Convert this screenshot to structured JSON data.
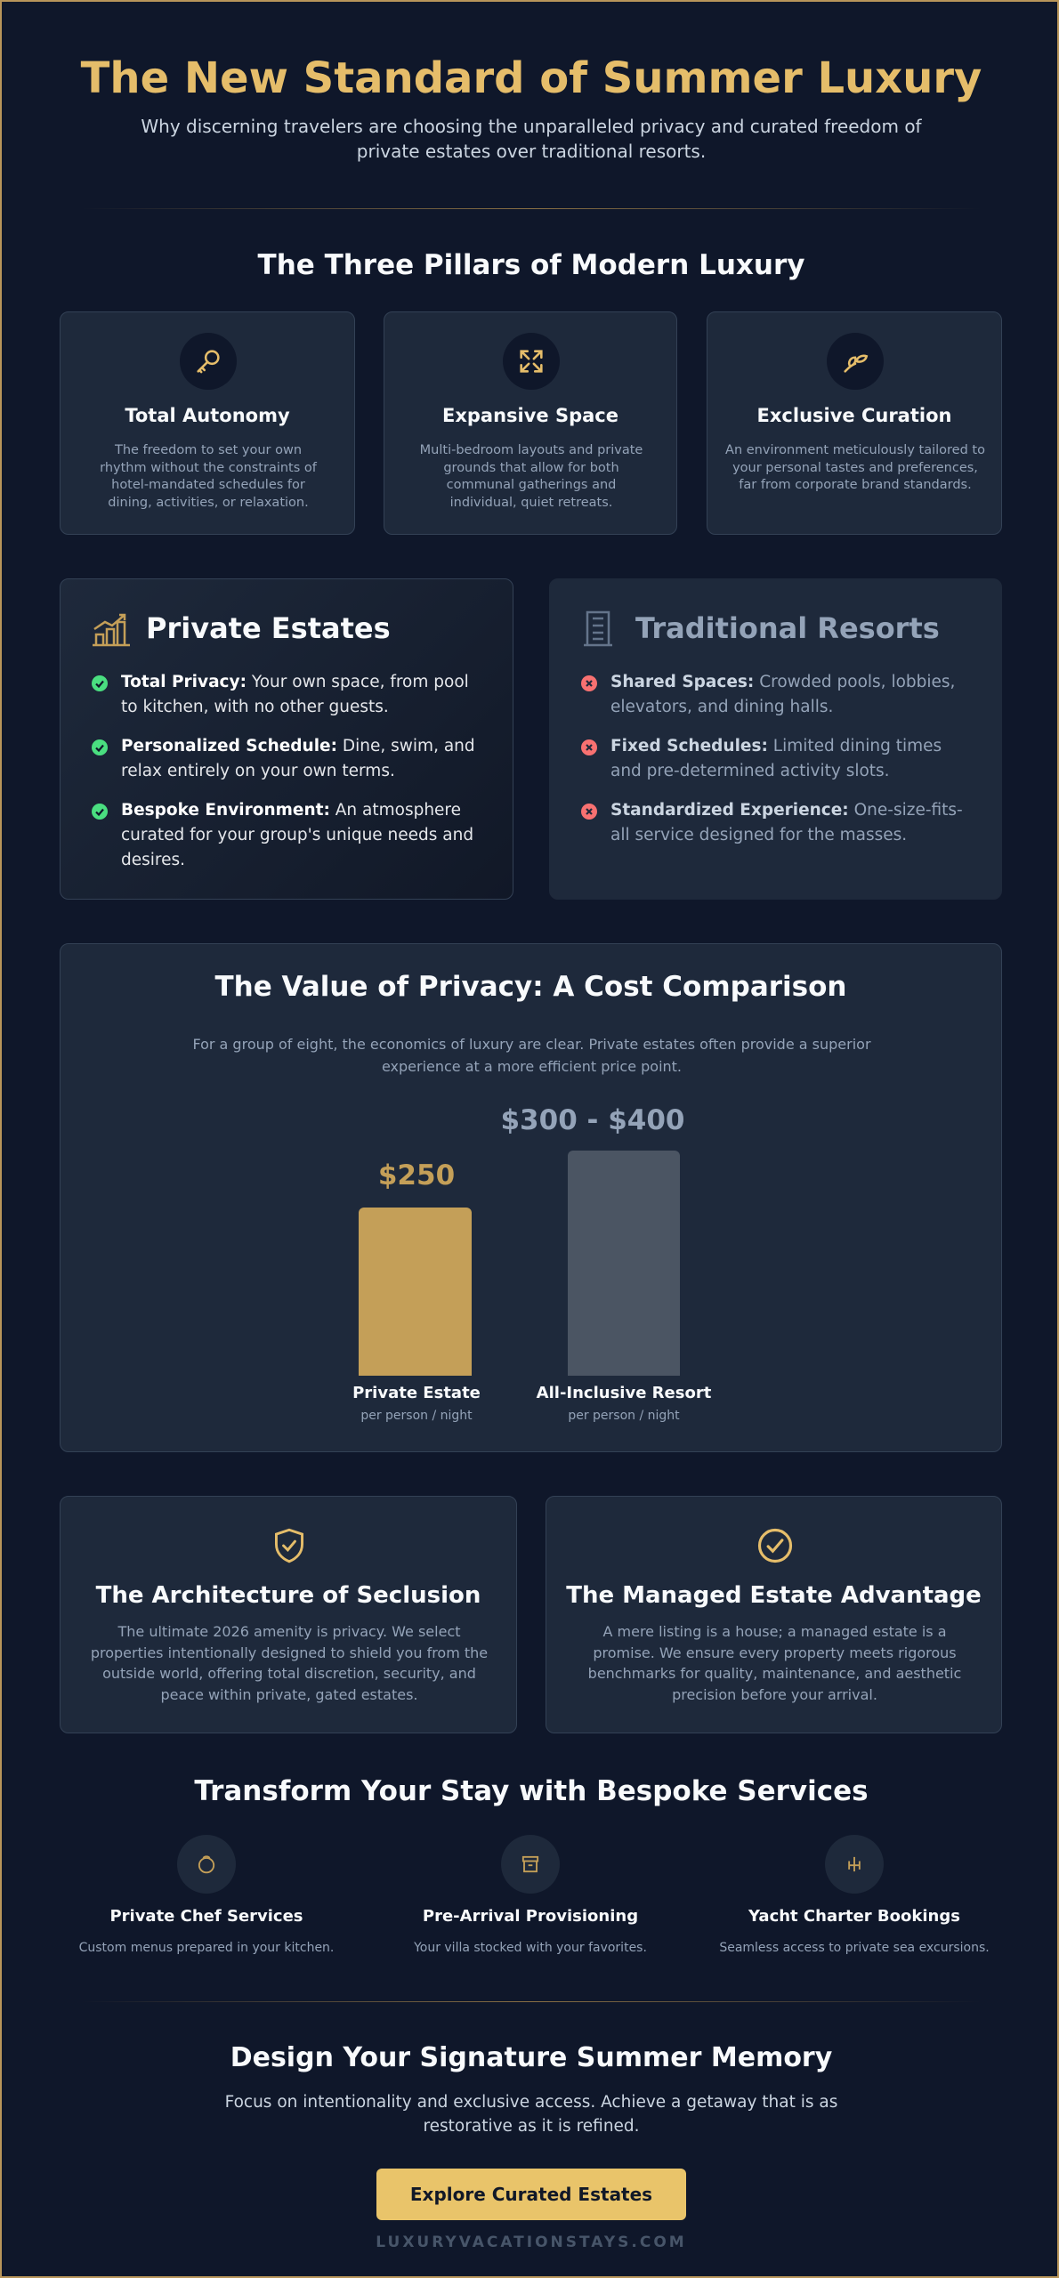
{
  "header": {
    "title": "The New Standard of Summer Luxury",
    "subtitle": "Why discerning travelers are choosing the unparalleled privacy and curated freedom of private estates over traditional resorts."
  },
  "pillars": {
    "heading": "The Three Pillars of Modern Luxury",
    "cards": [
      {
        "title": "Total Autonomy",
        "text": "The freedom to set your own rhythm without the constraints of hotel-mandated schedules for dining, activities, or relaxation."
      },
      {
        "title": "Expansive Space",
        "text": "Multi-bedroom layouts and private grounds that allow for both communal gatherings and individual, quiet retreats."
      },
      {
        "title": "Exclusive Curation",
        "text": "An environment meticulously tailored to your personal tastes and preferences, far from corporate brand standards."
      }
    ]
  },
  "comparison": {
    "private": {
      "title": "Private Estates",
      "items": [
        {
          "label": "Total Privacy:",
          "text": "Your own space, from pool to kitchen, with no other guests."
        },
        {
          "label": "Personalized Schedule:",
          "text": "Dine, swim, and relax entirely on your own terms."
        },
        {
          "label": "Bespoke Environment:",
          "text": "An atmosphere curated for your group's unique needs and desires."
        }
      ]
    },
    "resorts": {
      "title": "Traditional Resorts",
      "items": [
        {
          "label": "Shared Spaces:",
          "text": "Crowded pools, lobbies, elevators, and dining halls."
        },
        {
          "label": "Fixed Schedules:",
          "text": "Limited dining times and pre-determined activity slots."
        },
        {
          "label": "Standardized Experience:",
          "text": "One-size-fits-all service designed for the masses."
        }
      ]
    }
  },
  "cost": {
    "title": "The Value of Privacy: A Cost Comparison",
    "text": "For a group of eight, the economics of luxury are clear. Private estates often provide a superior experience at a more efficient price point.",
    "bars": [
      {
        "price": "$250",
        "label": "Private Estate",
        "unit": "per person / night"
      },
      {
        "price": "$300 - $400",
        "label": "All-Inclusive Resort",
        "unit": "per person / night"
      }
    ]
  },
  "features": [
    {
      "title": "The Architecture of Seclusion",
      "text": "The ultimate 2026 amenity is privacy. We select properties intentionally designed to shield you from the outside world, offering total discretion, security, and peace within private, gated estates."
    },
    {
      "title": "The Managed Estate Advantage",
      "text": "A mere listing is a house; a managed estate is a promise. We ensure every property meets rigorous benchmarks for quality, maintenance, and aesthetic precision before your arrival."
    }
  ],
  "services": {
    "heading": "Transform Your Stay with Bespoke Services",
    "items": [
      {
        "title": "Private Chef Services",
        "text": "Custom menus prepared in your kitchen."
      },
      {
        "title": "Pre-Arrival Provisioning",
        "text": "Your villa stocked with your favorites."
      },
      {
        "title": "Yacht Charter Bookings",
        "text": "Seamless access to private sea excursions."
      }
    ]
  },
  "cta": {
    "title": "Design Your Signature Summer Memory",
    "text": "Focus on intentionality and exclusive access. Achieve a getaway that is as restorative as it is refined.",
    "button": "Explore Curated Estates",
    "footer": "LUXURYVACATIONSTAYS.COM"
  }
}
